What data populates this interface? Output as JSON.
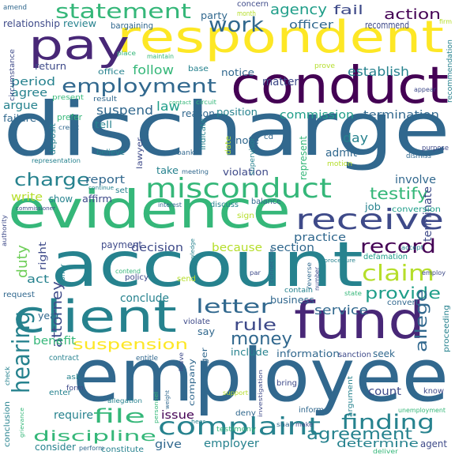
{
  "palette": {
    "dark_purple": "#440154",
    "purple": "#482777",
    "indigo": "#3e4a89",
    "blue": "#31688e",
    "teal": "#26828e",
    "green_teal": "#1f9e89",
    "green": "#35b779",
    "lime": "#6ece58",
    "yellow_green": "#b5de2b",
    "yellow": "#fde725"
  },
  "words": [
    {
      "text": "discharge",
      "color": "#31688e"
    },
    {
      "text": "employee",
      "color": "#31688e"
    },
    {
      "text": "account",
      "color": "#26828e"
    },
    {
      "text": "respondent",
      "color": "#fde725"
    },
    {
      "text": "conduct",
      "color": "#440154"
    },
    {
      "text": "evidence",
      "color": "#35b779"
    },
    {
      "text": "pay",
      "color": "#482777"
    },
    {
      "text": "fund",
      "color": "#482777"
    },
    {
      "text": "client",
      "color": "#26828e"
    },
    {
      "text": "misconduct",
      "color": "#35b779"
    },
    {
      "text": "receive",
      "color": "#3e4a89"
    },
    {
      "text": "complaint",
      "color": "#26828e"
    },
    {
      "text": "employment",
      "color": "#31688e"
    },
    {
      "text": "statement",
      "color": "#35b779"
    },
    {
      "text": "hearing",
      "color": "#26828e"
    },
    {
      "text": "finding",
      "color": "#26828e"
    },
    {
      "text": "charge",
      "color": "#26828e"
    },
    {
      "text": "claim",
      "color": "#b5de2b"
    },
    {
      "text": "letter",
      "color": "#31688e"
    },
    {
      "text": "record",
      "color": "#440154"
    },
    {
      "text": "work",
      "color": "#31688e"
    },
    {
      "text": "file",
      "color": "#35b779"
    },
    {
      "text": "discipline",
      "color": "#35b779"
    },
    {
      "text": "money",
      "color": "#31688e"
    },
    {
      "text": "suspension",
      "color": "#fde725"
    },
    {
      "text": "rule",
      "color": "#3e4a89"
    },
    {
      "text": "agreement",
      "color": "#26828e"
    },
    {
      "text": "determine",
      "color": "#26828e"
    },
    {
      "text": "testify",
      "color": "#35b779"
    },
    {
      "text": "provide",
      "color": "#1f9e89"
    },
    {
      "text": "action",
      "color": "#440154"
    },
    {
      "text": "agency",
      "color": "#1f9e89"
    },
    {
      "text": "fail",
      "color": "#3e4a89"
    },
    {
      "text": "officer",
      "color": "#31688e"
    },
    {
      "text": "follow",
      "color": "#35b779"
    },
    {
      "text": "law",
      "color": "#1f9e89"
    },
    {
      "text": "suspend",
      "color": "#31688e"
    },
    {
      "text": "establish",
      "color": "#26828e"
    },
    {
      "text": "matter",
      "color": "#3e4a89"
    },
    {
      "text": "practice",
      "color": "#31688e"
    },
    {
      "text": "service",
      "color": "#31688e"
    },
    {
      "text": "allege",
      "color": "#31688e"
    },
    {
      "text": "attorney",
      "color": "#3e4a89"
    },
    {
      "text": "duty",
      "color": "#6ece58"
    },
    {
      "text": "termination",
      "color": "#31688e"
    },
    {
      "text": "commission",
      "color": "#1f9e89"
    },
    {
      "text": "period",
      "color": "#26828e"
    },
    {
      "text": "agree",
      "color": "#26828e"
    },
    {
      "text": "argue",
      "color": "#26828e"
    },
    {
      "text": "failure",
      "color": "#31688e"
    },
    {
      "text": "decision",
      "color": "#3e4a89"
    },
    {
      "text": "section",
      "color": "#31688e"
    },
    {
      "text": "because",
      "color": "#b5de2b"
    },
    {
      "text": "report",
      "color": "#31688e"
    },
    {
      "text": "write",
      "color": "#b5de2b"
    },
    {
      "text": "conclude",
      "color": "#26828e"
    },
    {
      "text": "business",
      "color": "#31688e"
    },
    {
      "text": "information",
      "color": "#31688e"
    },
    {
      "text": "include",
      "color": "#26828e"
    },
    {
      "text": "benefit",
      "color": "#35b779"
    },
    {
      "text": "act",
      "color": "#26828e"
    },
    {
      "text": "day",
      "color": "#26828e"
    },
    {
      "text": "admit",
      "color": "#31688e"
    },
    {
      "text": "involve",
      "color": "#31688e"
    },
    {
      "text": "terminate",
      "color": "#3e4a89"
    },
    {
      "text": "issue",
      "color": "#440154"
    },
    {
      "text": "give",
      "color": "#31688e"
    },
    {
      "text": "employer",
      "color": "#26828e"
    },
    {
      "text": "count",
      "color": "#3e4a89"
    },
    {
      "text": "require",
      "color": "#26828e"
    },
    {
      "text": "consider",
      "color": "#26828e"
    },
    {
      "text": "year",
      "color": "#31688e"
    },
    {
      "text": "payment",
      "color": "#3e4a89"
    },
    {
      "text": "show",
      "color": "#26828e"
    },
    {
      "text": "affirm",
      "color": "#3e4a89"
    },
    {
      "text": "party",
      "color": "#31688e"
    },
    {
      "text": "concern",
      "color": "#3e4a89"
    },
    {
      "text": "month",
      "color": "#b5de2b"
    },
    {
      "text": "relationship",
      "color": "#3e4a89"
    },
    {
      "text": "review",
      "color": "#26828e"
    },
    {
      "text": "bargaining",
      "color": "#31688e"
    },
    {
      "text": "recommend",
      "color": "#3e4a89"
    },
    {
      "text": "return",
      "color": "#3e4a89"
    },
    {
      "text": "office",
      "color": "#26828e"
    },
    {
      "text": "base",
      "color": "#26828e"
    },
    {
      "text": "notice",
      "color": "#31688e"
    },
    {
      "text": "present",
      "color": "#35b779"
    },
    {
      "text": "result",
      "color": "#31688e"
    },
    {
      "text": "reason",
      "color": "#31688e"
    },
    {
      "text": "position",
      "color": "#26828e"
    },
    {
      "text": "tell",
      "color": "#26828e"
    },
    {
      "text": "believe",
      "color": "#26828e"
    },
    {
      "text": "note",
      "color": "#31688e"
    },
    {
      "text": "cd",
      "color": "#31688e"
    },
    {
      "text": "represent",
      "color": "#35b779"
    },
    {
      "text": "violation",
      "color": "#3e4a89"
    },
    {
      "text": "take",
      "color": "#26828e"
    },
    {
      "text": "meeting",
      "color": "#31688e"
    },
    {
      "text": "balance",
      "color": "#31688e"
    },
    {
      "text": "discuss",
      "color": "#26828e"
    },
    {
      "text": "sign",
      "color": "#b5de2b"
    },
    {
      "text": "job",
      "color": "#26828e"
    },
    {
      "text": "conversion",
      "color": "#1f9e89"
    },
    {
      "text": "defamation",
      "color": "#1f9e89"
    },
    {
      "text": "policy",
      "color": "#3e4a89"
    },
    {
      "text": "send",
      "color": "#b5de2b"
    },
    {
      "text": "violate",
      "color": "#3e4a89"
    },
    {
      "text": "say",
      "color": "#31688e"
    },
    {
      "text": "request",
      "color": "#31688e"
    },
    {
      "text": "right",
      "color": "#3e4a89"
    },
    {
      "text": "contain",
      "color": "#26828e"
    },
    {
      "text": "convert",
      "color": "#31688e"
    },
    {
      "text": "proceeding",
      "color": "#26828e"
    },
    {
      "text": "sanction",
      "color": "#3e4a89"
    },
    {
      "text": "seek",
      "color": "#31688e"
    },
    {
      "text": "manager",
      "color": "#31688e"
    },
    {
      "text": "company",
      "color": "#31688e"
    },
    {
      "text": "contract",
      "color": "#26828e"
    },
    {
      "text": "entitle",
      "color": "#31688e"
    },
    {
      "text": "enter",
      "color": "#26828e"
    },
    {
      "text": "know",
      "color": "#3e4a89"
    },
    {
      "text": "deny",
      "color": "#31688e"
    },
    {
      "text": "bring",
      "color": "#3e4a89"
    },
    {
      "text": "inform",
      "color": "#31688e"
    },
    {
      "text": "argument",
      "color": "#26828e"
    },
    {
      "text": "agent",
      "color": "#3e4a89"
    },
    {
      "text": "testimony",
      "color": "#35b779"
    },
    {
      "text": "constitute",
      "color": "#26828e"
    },
    {
      "text": "conclusion",
      "color": "#26828e"
    },
    {
      "text": "amend",
      "color": "#31688e"
    },
    {
      "text": "firm",
      "color": "#b5de2b"
    },
    {
      "text": "circumstance",
      "color": "#3e4a89"
    },
    {
      "text": "recommendation",
      "color": "#26828e"
    },
    {
      "text": "deposit",
      "color": "#26828e"
    },
    {
      "text": "prefer",
      "color": "#35b779"
    },
    {
      "text": "bank",
      "color": "#31688e"
    },
    {
      "text": "indicate",
      "color": "#26828e"
    },
    {
      "text": "date",
      "color": "#b5de2b"
    },
    {
      "text": "supervisor",
      "color": "#26828e"
    },
    {
      "text": "motion",
      "color": "#b5de2b"
    },
    {
      "text": "dismiss",
      "color": "#31688e"
    },
    {
      "text": "purpose",
      "color": "#3e4a89"
    },
    {
      "text": "representation",
      "color": "#26828e"
    },
    {
      "text": "interest",
      "color": "#31688e"
    },
    {
      "text": "authority",
      "color": "#3e4a89"
    },
    {
      "text": "commissioner",
      "color": "#3e4a89"
    },
    {
      "text": "unemployment",
      "color": "#35b779"
    },
    {
      "text": "accept",
      "color": "#26828e"
    },
    {
      "text": "reverse",
      "color": "#31688e"
    },
    {
      "text": "ask",
      "color": "#26828e"
    },
    {
      "text": "form",
      "color": "#3e4a89"
    },
    {
      "text": "leave",
      "color": "#3e4a89"
    },
    {
      "text": "perform",
      "color": "#31688e"
    },
    {
      "text": "deliver",
      "color": "#35b779"
    },
    {
      "text": "make",
      "color": "#3e4a89"
    },
    {
      "text": "shall",
      "color": "#31688e"
    },
    {
      "text": "place",
      "color": "#35b779"
    },
    {
      "text": "maintain",
      "color": "#35b779"
    },
    {
      "text": "prove",
      "color": "#b5de2b"
    },
    {
      "text": "appear",
      "color": "#3e4a89"
    },
    {
      "text": "grievance",
      "color": "#35b779"
    },
    {
      "text": "check",
      "color": "#26828e"
    },
    {
      "text": "number",
      "color": "#3e4a89"
    },
    {
      "text": "employ",
      "color": "#3e4a89"
    },
    {
      "text": "contend",
      "color": "#35b779"
    },
    {
      "text": "support",
      "color": "#b5de2b"
    },
    {
      "text": "personnel",
      "color": "#35b779"
    },
    {
      "text": "investigation",
      "color": "#3e4a89"
    },
    {
      "text": "allegation",
      "color": "#26828e"
    },
    {
      "text": "hear",
      "color": "#26828e"
    },
    {
      "text": "weight",
      "color": "#31688e"
    },
    {
      "text": "circuit",
      "color": "#35b779"
    },
    {
      "text": "contact",
      "color": "#35b779"
    },
    {
      "text": "lawyer",
      "color": "#3e4a89"
    },
    {
      "text": "credit",
      "color": "#31688e"
    },
    {
      "text": "continue",
      "color": "#26828e"
    },
    {
      "text": "set",
      "color": "#26828e"
    },
    {
      "text": "knowledge",
      "color": "#26828e"
    },
    {
      "text": "offer",
      "color": "#26828e"
    },
    {
      "text": "state",
      "color": "#35b779"
    },
    {
      "text": "procedure",
      "color": "#26828e"
    },
    {
      "text": "par",
      "color": "#3e4a89"
    },
    {
      "text": "connection",
      "color": "#31688e"
    }
  ]
}
